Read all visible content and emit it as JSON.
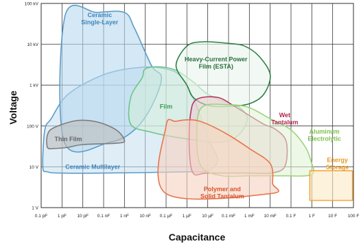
{
  "chart_data": {
    "type": "area",
    "xlabel": "Capacitance",
    "ylabel": "Voltage",
    "x_scale": "log",
    "y_scale": "log",
    "x_ticks": [
      {
        "label": "0.1 pF",
        "farads": 1e-13
      },
      {
        "label": "1 pF",
        "farads": 1e-12
      },
      {
        "label": "10 pF",
        "farads": 1e-11
      },
      {
        "label": "0.1 nF",
        "farads": 1e-10
      },
      {
        "label": "1 nF",
        "farads": 1e-09
      },
      {
        "label": "10 nF",
        "farads": 1e-08
      },
      {
        "label": "0.1 µF",
        "farads": 1e-07
      },
      {
        "label": "1 µF",
        "farads": 1e-06
      },
      {
        "label": "10 µF",
        "farads": 1e-05
      },
      {
        "label": "0.1 mF",
        "farads": 0.0001
      },
      {
        "label": "1 mF",
        "farads": 0.001
      },
      {
        "label": "10 mF",
        "farads": 0.01
      },
      {
        "label": "0.1 F",
        "farads": 0.1
      },
      {
        "label": "1 F",
        "farads": 1
      },
      {
        "label": "10 F",
        "farads": 10
      },
      {
        "label": "100 F",
        "farads": 100
      }
    ],
    "y_ticks": [
      {
        "label": "1 V",
        "volts": 1
      },
      {
        "label": "10 V",
        "volts": 10
      },
      {
        "label": "100 V",
        "volts": 100
      },
      {
        "label": "1 kV",
        "volts": 1000
      },
      {
        "label": "10 kV",
        "volts": 10000
      },
      {
        "label": "100 kV",
        "volts": 100000
      }
    ],
    "xlim": [
      1e-13,
      100
    ],
    "ylim": [
      1,
      100000
    ],
    "grid": true,
    "legend": "none",
    "regions": [
      {
        "id": "ceramic-multilayer",
        "label_lines": [
          "Ceramic Multilayer"
        ],
        "stroke": "#5b9cc8",
        "fill": "#c5def0",
        "fill_opacity": 0.55,
        "text_color": "#3d86bd",
        "label_at": [
          3e-11,
          10
        ],
        "points": [
          [
            1.2e-13,
            10
          ],
          [
            1.5e-13,
            80
          ],
          [
            3e-13,
            150
          ],
          [
            2e-12,
            600
          ],
          [
            1e-10,
            1800
          ],
          [
            5e-09,
            2700
          ],
          [
            1e-07,
            2500
          ],
          [
            6e-07,
            1500
          ],
          [
            3e-06,
            300
          ],
          [
            1e-05,
            50
          ],
          [
            3e-05,
            15
          ],
          [
            1e-05,
            8
          ],
          [
            1e-06,
            7.5
          ],
          [
            1e-10,
            7
          ],
          [
            1e-12,
            7
          ],
          [
            2e-13,
            7.5
          ]
        ]
      },
      {
        "id": "ceramic-single-layer",
        "label_lines": [
          "Ceramic",
          "Single-Layer"
        ],
        "stroke": "#5b9cc8",
        "fill": "#b9d8ee",
        "fill_opacity": 0.6,
        "text_color": "#3d86bd",
        "label_at": [
          6.5e-11,
          42000
        ],
        "points": [
          [
            1.4e-12,
            50000
          ],
          [
            5e-11,
            60000
          ],
          [
            1e-09,
            60000
          ],
          [
            3e-09,
            25000
          ],
          [
            2e-08,
            3000
          ],
          [
            6e-08,
            1500
          ],
          [
            2e-08,
            300
          ],
          [
            3e-09,
            80
          ],
          [
            2e-10,
            40
          ],
          [
            1.3e-12,
            40
          ]
        ]
      },
      {
        "id": "film",
        "label_lines": [
          "Film"
        ],
        "stroke": "#6cc48a",
        "fill": "#d3efd9",
        "fill_opacity": 0.55,
        "text_color": "#3e9a57",
        "label_at": [
          1e-07,
          300
        ],
        "points": [
          [
            7e-09,
            1500
          ],
          [
            1e-08,
            2500
          ],
          [
            5e-08,
            2800
          ],
          [
            3e-07,
            2300
          ],
          [
            2e-06,
            1200
          ],
          [
            1e-05,
            600
          ],
          [
            0.0001,
            350
          ],
          [
            0.0003,
            300
          ],
          [
            0.0008,
            150
          ],
          [
            0.0003,
            60
          ],
          [
            4e-05,
            40
          ],
          [
            6e-07,
            50
          ],
          [
            2e-08,
            70
          ],
          [
            2e-09,
            110
          ],
          [
            2e-09,
            500
          ]
        ]
      },
      {
        "id": "thin-film",
        "label_lines": [
          "Thin Film"
        ],
        "stroke": "#7c7c7c",
        "fill": "#bdbdbd",
        "fill_opacity": 0.6,
        "text_color": "#666666",
        "label_at": [
          2e-12,
          48
        ],
        "points": [
          [
            2e-13,
            60
          ],
          [
            4e-13,
            90
          ],
          [
            5e-12,
            135
          ],
          [
            5e-11,
            125
          ],
          [
            4e-10,
            80
          ],
          [
            1e-09,
            45
          ],
          [
            5e-10,
            38
          ],
          [
            1e-11,
            35
          ],
          [
            2e-12,
            30
          ],
          [
            4e-13,
            28
          ],
          [
            2e-13,
            30
          ]
        ]
      },
      {
        "id": "heavy-current-power-film",
        "label_lines": [
          "Heavy-Current Power",
          "Film (ESTA)"
        ],
        "stroke": "#2e7f44",
        "fill": "#eaf5ec",
        "fill_opacity": 0.6,
        "text_color": "#2a6e3c",
        "label_at": [
          2.5e-05,
          3500
        ],
        "points": [
          [
            1e-06,
            1000
          ],
          [
            3e-07,
            3000
          ],
          [
            1e-06,
            9000
          ],
          [
            6e-06,
            11500
          ],
          [
            0.0001,
            10500
          ],
          [
            0.0006,
            9000
          ],
          [
            0.003,
            5000
          ],
          [
            0.01,
            1800
          ],
          [
            0.005,
            600
          ],
          [
            0.001,
            350
          ],
          [
            0.0001,
            300
          ],
          [
            1e-05,
            320
          ],
          [
            2e-06,
            500
          ]
        ]
      },
      {
        "id": "wet-tantalum",
        "label_lines": [
          "Wet",
          "Tantalum"
        ],
        "stroke": "#b33658",
        "fill": "#efc8d2",
        "fill_opacity": 0.55,
        "text_color": "#b0284f",
        "label_at": [
          0.05,
          150
        ],
        "points": [
          [
            1.5e-06,
            200
          ],
          [
            3e-06,
            450
          ],
          [
            3e-05,
            500
          ],
          [
            0.0002,
            300
          ],
          [
            0.001,
            180
          ],
          [
            0.005,
            110
          ],
          [
            0.02,
            80
          ],
          [
            0.06,
            40
          ],
          [
            0.05,
            10
          ],
          [
            0.01,
            7
          ],
          [
            0.001,
            7
          ],
          [
            1e-05,
            7
          ],
          [
            2e-06,
            7
          ],
          [
            1.3e-06,
            30
          ]
        ]
      },
      {
        "id": "aluminum-electrolytic",
        "label_lines": [
          "Aluminum",
          "Electrolytic"
        ],
        "stroke": "#9bd37a",
        "fill": "#e0f3d3",
        "fill_opacity": 0.55,
        "text_color": "#7cc24c",
        "label_at": [
          4,
          60
        ],
        "points": [
          [
            5e-06,
            280
          ],
          [
            0.0001,
            330
          ],
          [
            0.001,
            280
          ],
          [
            0.01,
            150
          ],
          [
            0.1,
            80
          ],
          [
            0.5,
            30
          ],
          [
            1,
            12
          ],
          [
            1.2,
            7
          ],
          [
            0.5,
            6
          ],
          [
            0.05,
            6
          ],
          [
            0.001,
            6
          ],
          [
            5e-05,
            6
          ],
          [
            5e-06,
            10
          ],
          [
            3e-06,
            50
          ]
        ]
      },
      {
        "id": "polymer-solid-tantalum",
        "label_lines": [
          "Polymer and",
          "Solid Tantalum"
        ],
        "stroke": "#e8744e",
        "fill": "#f6d2c0",
        "fill_opacity": 0.6,
        "text_color": "#d9532a",
        "label_at": [
          5e-05,
          2.3
        ],
        "points": [
          [
            1e-07,
            100
          ],
          [
            1e-07,
            2.2
          ],
          [
            0.01,
            2.2
          ],
          [
            0.013,
            4
          ],
          [
            0.01,
            12
          ],
          [
            0.001,
            28
          ],
          [
            0.0001,
            60
          ],
          [
            1e-05,
            110
          ],
          [
            2e-06,
            140
          ],
          [
            3e-07,
            130
          ]
        ]
      },
      {
        "id": "energy-storage",
        "label_lines": [
          "Energy",
          "Storage"
        ],
        "stroke": "#f2a83a",
        "fill": "#fce9c4",
        "fill_opacity": 0.6,
        "text_color": "#e8991f",
        "label_at": [
          17,
          12
        ],
        "points": [
          [
            0.8,
            1.5
          ],
          [
            0.8,
            8
          ],
          [
            90,
            8
          ],
          [
            90,
            1.5
          ]
        ]
      }
    ]
  }
}
